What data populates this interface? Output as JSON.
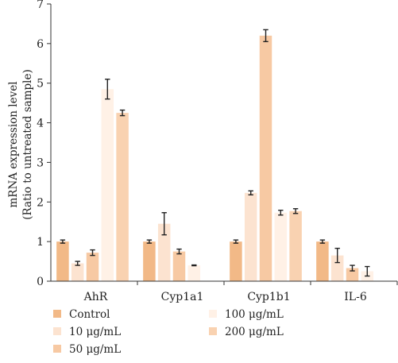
{
  "chart_data": {
    "type": "bar",
    "ylabel_line1": "mRNA expression level",
    "ylabel_line2": "(Ratio to untreated sample)",
    "xlabel": "",
    "ylim": [
      0,
      7
    ],
    "yticks": [
      0,
      1,
      2,
      3,
      4,
      5,
      6,
      7
    ],
    "grid": false,
    "legend_position": "bottom",
    "categories": [
      "AhR",
      "Cyp1a1",
      "Cyp1b1",
      "IL-6"
    ],
    "series": [
      {
        "name": "Control",
        "color": "#f2b987",
        "values": [
          1.0,
          1.0,
          1.0,
          1.0
        ],
        "errors": [
          0.04,
          0.04,
          0.04,
          0.04
        ]
      },
      {
        "name": "10 μg/mL",
        "color": "#fce3d0",
        "values": [
          0.45,
          1.45,
          2.23,
          0.65
        ],
        "errors": [
          0.05,
          0.28,
          0.05,
          0.18
        ]
      },
      {
        "name": "50 μg/mL",
        "color": "#f7c9a3",
        "values": [
          0.72,
          0.75,
          6.2,
          0.33
        ],
        "errors": [
          0.07,
          0.06,
          0.15,
          0.07
        ]
      },
      {
        "name": "100 μg/mL",
        "color": "#fff1e6",
        "values": [
          4.85,
          0.4,
          1.73,
          0.25
        ],
        "errors": [
          0.25,
          0.01,
          0.06,
          0.12
        ]
      },
      {
        "name": "200 μg/mL",
        "color": "#f9d2b1",
        "values": [
          4.25,
          0.0,
          1.77,
          0.0
        ],
        "errors": [
          0.07,
          0.0,
          0.06,
          0.0
        ]
      }
    ]
  }
}
